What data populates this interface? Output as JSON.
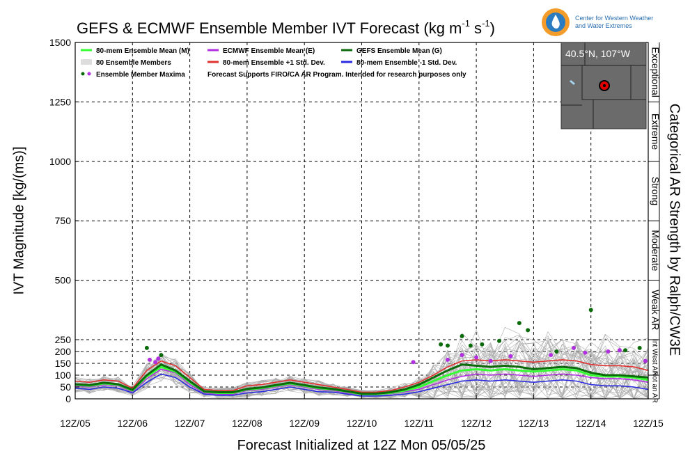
{
  "header": {
    "title": "GEFS & ECMWF Ensemble Member IVT Forecast (kg m",
    "title_sup1": "-1",
    "title_mid": " s",
    "title_sup2": "-1",
    "title_end": ")",
    "logo_line1": "Center for Western Weather",
    "logo_line2": "and Water Extremes",
    "logo_icon": "cw3e-water-drop-logo"
  },
  "location_label": "40.5°N, 107°W",
  "inset_map": {
    "marker": "red-circle-location-marker",
    "background": "#6b6b6b"
  },
  "footer_text": "Forecast Initialized at 12Z Mon 05/05/25",
  "chart_data": {
    "type": "line",
    "title": "GEFS & ECMWF Ensemble Member IVT Forecast (kg m-1 s-1)",
    "xlabel": "Forecast Initialized at 12Z Mon 05/05/25",
    "ylabel": "IVT Magnitude [kg/(ms)]",
    "right_label": "Categorical AR Strength by Ralph/CW3E",
    "ylim": [
      0,
      1500
    ],
    "xlim": [
      0,
      10
    ],
    "grid": true,
    "legend_position": "top-left",
    "y_ticks": [
      0,
      50,
      100,
      150,
      200,
      250,
      500,
      750,
      1000,
      1250,
      1500
    ],
    "x_ticks": [
      {
        "x": 0,
        "label": "12Z/05"
      },
      {
        "x": 1,
        "label": "12Z/06"
      },
      {
        "x": 2,
        "label": "12Z/07"
      },
      {
        "x": 3,
        "label": "12Z/08"
      },
      {
        "x": 4,
        "label": "12Z/09"
      },
      {
        "x": 5,
        "label": "12Z/10"
      },
      {
        "x": 6,
        "label": "12Z/11"
      },
      {
        "x": 7,
        "label": "12Z/12"
      },
      {
        "x": 8,
        "label": "12Z/13"
      },
      {
        "x": 9,
        "label": "12Z/14"
      },
      {
        "x": 10,
        "label": "12Z/15"
      }
    ],
    "categories": [
      {
        "label": "Not an AR",
        "from": 0,
        "to": 100
      },
      {
        "label": "Int West AR",
        "from": 100,
        "to": 250
      },
      {
        "label": "Weak AR",
        "from": 250,
        "to": 500
      },
      {
        "label": "Moderate",
        "from": 500,
        "to": 750
      },
      {
        "label": "Strong",
        "from": 750,
        "to": 1000
      },
      {
        "label": "Extreme",
        "from": 1000,
        "to": 1250
      },
      {
        "label": "Exceptional",
        "from": 1250,
        "to": 1500
      }
    ],
    "legend": [
      {
        "label": "80-mem Ensemble Mean (M)",
        "color": "#33ff33",
        "kind": "line"
      },
      {
        "label": "ECMWF Ensemble Mean (E)",
        "color": "#b030e0",
        "kind": "line"
      },
      {
        "label": "GEFS Ensemble Mean (G)",
        "color": "#0b6b0b",
        "kind": "line"
      },
      {
        "label": "80 Ensemble Members",
        "color": "#aaaaaa",
        "kind": "multi"
      },
      {
        "label": "80-mem Ensemble +1 Std. Dev.",
        "color": "#e03030",
        "kind": "line"
      },
      {
        "label": "80-mem Ensemble -1 Std. Dev.",
        "color": "#2a2ae0",
        "kind": "line"
      },
      {
        "label": "Ensemble Member Maxima",
        "color": "#0b6b0b",
        "kind": "dots"
      }
    ],
    "note": "Forecast Supports FIRO/CA AR Program. Intended for research purposes only",
    "x": [
      0,
      0.25,
      0.5,
      0.75,
      1,
      1.25,
      1.5,
      1.75,
      2,
      2.25,
      2.5,
      2.75,
      3,
      3.25,
      3.5,
      3.75,
      4,
      4.25,
      4.5,
      4.75,
      5,
      5.25,
      5.5,
      5.75,
      6,
      6.25,
      6.5,
      6.75,
      7,
      7.25,
      7.5,
      7.75,
      8,
      8.25,
      8.5,
      8.75,
      9,
      9.25,
      9.5,
      9.75,
      10
    ],
    "series": [
      {
        "name": "80-mem Ensemble Mean (M)",
        "color": "#33ff33",
        "values": [
          60,
          55,
          65,
          60,
          35,
          95,
          135,
          115,
          70,
          30,
          25,
          25,
          40,
          45,
          55,
          65,
          55,
          45,
          40,
          30,
          20,
          20,
          25,
          35,
          50,
          75,
          100,
          120,
          125,
          120,
          125,
          120,
          115,
          120,
          125,
          120,
          100,
          95,
          95,
          90,
          80
        ]
      },
      {
        "name": "ECMWF Ensemble Mean (E)",
        "color": "#b030e0",
        "values": [
          55,
          50,
          60,
          55,
          30,
          85,
          125,
          110,
          60,
          25,
          20,
          20,
          35,
          40,
          50,
          60,
          50,
          40,
          35,
          25,
          18,
          18,
          22,
          30,
          40,
          60,
          80,
          95,
          105,
          100,
          105,
          100,
          95,
          100,
          105,
          100,
          90,
          85,
          85,
          80,
          70
        ]
      },
      {
        "name": "GEFS Ensemble Mean (G)",
        "color": "#0b6b0b",
        "values": [
          62,
          58,
          68,
          62,
          38,
          100,
          145,
          120,
          75,
          32,
          28,
          28,
          42,
          48,
          58,
          68,
          58,
          48,
          42,
          32,
          22,
          22,
          28,
          40,
          60,
          90,
          120,
          145,
          140,
          135,
          140,
          135,
          125,
          130,
          135,
          130,
          110,
          100,
          100,
          95,
          90
        ]
      },
      {
        "name": "80-mem Ensemble +1 Std. Dev.",
        "color": "#e03030",
        "values": [
          75,
          70,
          80,
          75,
          45,
          120,
          160,
          140,
          90,
          40,
          35,
          35,
          55,
          60,
          70,
          80,
          70,
          60,
          50,
          40,
          28,
          28,
          35,
          50,
          70,
          100,
          135,
          160,
          165,
          160,
          165,
          160,
          155,
          160,
          165,
          160,
          145,
          140,
          140,
          135,
          120
        ]
      },
      {
        "name": "80-mem Ensemble -1 Std. Dev.",
        "color": "#2a2ae0",
        "values": [
          45,
          40,
          50,
          45,
          25,
          70,
          105,
          90,
          50,
          20,
          15,
          15,
          25,
          30,
          40,
          50,
          40,
          30,
          28,
          20,
          12,
          12,
          15,
          20,
          30,
          45,
          60,
          75,
          80,
          75,
          80,
          75,
          70,
          75,
          80,
          75,
          60,
          55,
          55,
          50,
          40
        ]
      }
    ],
    "maxima_green": [
      {
        "x": 1.25,
        "y": 215
      },
      {
        "x": 1.5,
        "y": 185
      },
      {
        "x": 6.38,
        "y": 230
      },
      {
        "x": 6.5,
        "y": 225
      },
      {
        "x": 6.75,
        "y": 265
      },
      {
        "x": 6.9,
        "y": 225
      },
      {
        "x": 7.1,
        "y": 230
      },
      {
        "x": 7.4,
        "y": 245
      },
      {
        "x": 7.75,
        "y": 320
      },
      {
        "x": 7.9,
        "y": 290
      },
      {
        "x": 8.4,
        "y": 200
      },
      {
        "x": 9.0,
        "y": 375
      },
      {
        "x": 9.6,
        "y": 205
      },
      {
        "x": 9.85,
        "y": 215
      }
    ],
    "maxima_purple": [
      {
        "x": 1.3,
        "y": 165
      },
      {
        "x": 1.4,
        "y": 155
      },
      {
        "x": 1.45,
        "y": 170
      },
      {
        "x": 5.9,
        "y": 155
      },
      {
        "x": 6.5,
        "y": 165
      },
      {
        "x": 6.75,
        "y": 185
      },
      {
        "x": 7.0,
        "y": 175
      },
      {
        "x": 7.25,
        "y": 160
      },
      {
        "x": 7.6,
        "y": 180
      },
      {
        "x": 8.3,
        "y": 185
      },
      {
        "x": 8.7,
        "y": 215
      },
      {
        "x": 8.9,
        "y": 195
      },
      {
        "x": 9.3,
        "y": 200
      },
      {
        "x": 9.5,
        "y": 205
      },
      {
        "x": 9.95,
        "y": 160
      }
    ]
  }
}
